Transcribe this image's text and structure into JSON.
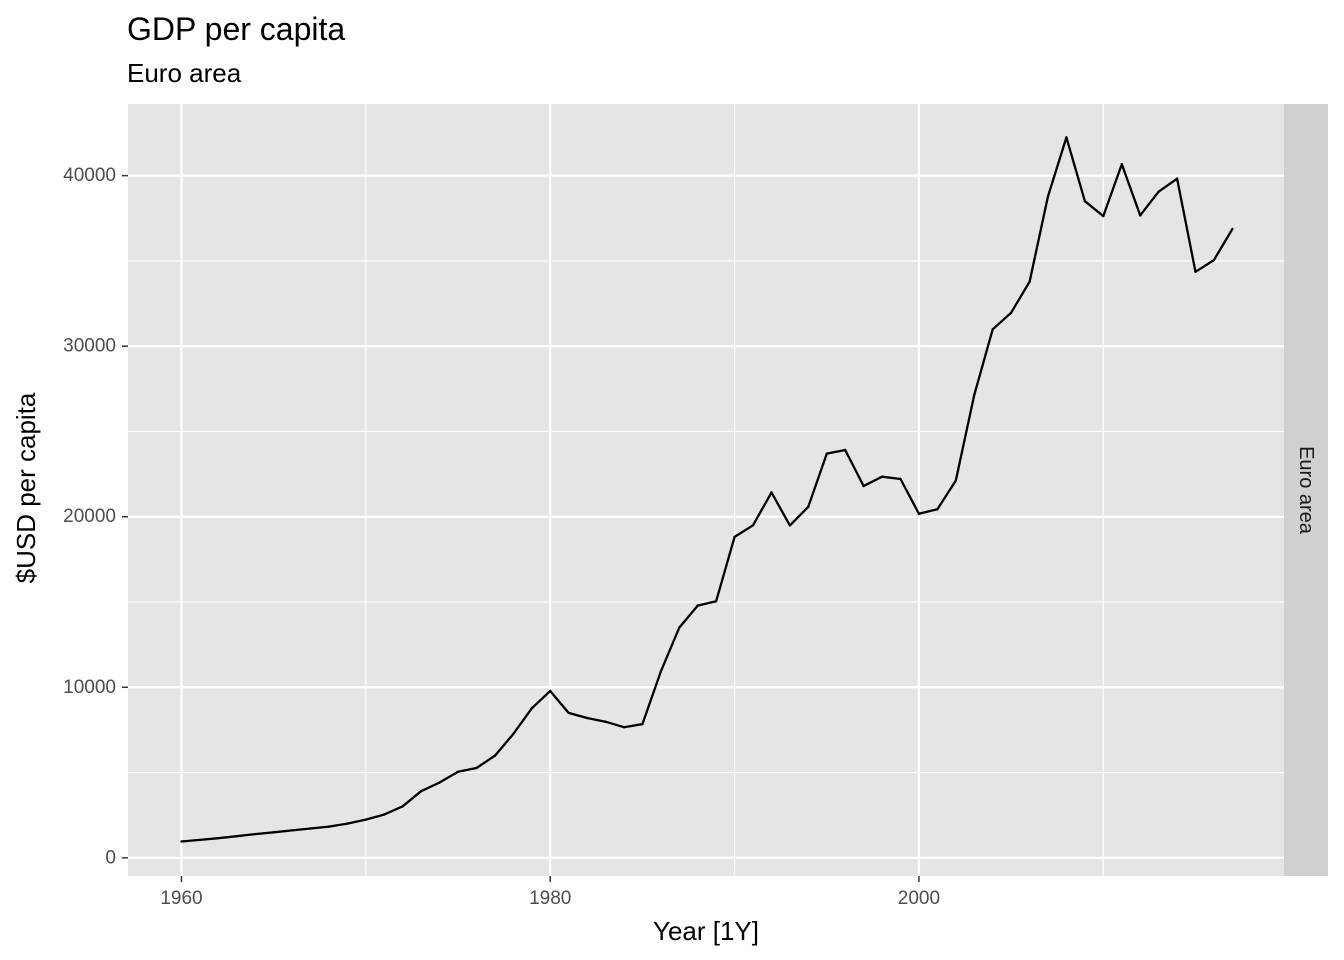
{
  "chart_data": {
    "type": "line",
    "title": "GDP per capita",
    "subtitle": "Euro area",
    "xlabel": "Year [1Y]",
    "ylabel": "$USD per capita",
    "facet_label": "Euro area",
    "xlim": [
      1957.1,
      2019.8
    ],
    "ylim": [
      -1065,
      44200
    ],
    "x_ticks": [
      1960,
      1980,
      2000
    ],
    "x_minor_ticks": [
      1970,
      1990,
      2010
    ],
    "y_ticks": [
      0,
      10000,
      20000,
      30000,
      40000
    ],
    "y_minor_ticks": [
      5000,
      15000,
      25000,
      35000
    ],
    "grid": true,
    "colors": {
      "panel": "#e5e5e5",
      "grid": "#ffffff",
      "strip": "#d0d0d0",
      "line": "#000000"
    },
    "series": [
      {
        "x": [
          1960,
          1961,
          1962,
          1963,
          1964,
          1965,
          1966,
          1967,
          1968,
          1969,
          1970,
          1971,
          1972,
          1973,
          1974,
          1975,
          1976,
          1977,
          1978,
          1979,
          1980,
          1981,
          1982,
          1983,
          1984,
          1985,
          1986,
          1987,
          1988,
          1989,
          1990,
          1991,
          1992,
          1993,
          1994,
          1995,
          1996,
          1997,
          1998,
          1999,
          2000,
          2001,
          2002,
          2003,
          2004,
          2005,
          2006,
          2007,
          2008,
          2009,
          2010,
          2011,
          2012,
          2013,
          2014,
          2015,
          2016,
          2017
        ],
        "values": [
          960,
          1050,
          1150,
          1270,
          1390,
          1500,
          1610,
          1720,
          1830,
          2010,
          2240,
          2540,
          3020,
          3910,
          4420,
          5050,
          5270,
          5990,
          7260,
          8770,
          9780,
          8500,
          8200,
          7980,
          7660,
          7840,
          10920,
          13500,
          14790,
          15040,
          18820,
          19500,
          21420,
          19490,
          20580,
          23700,
          23910,
          21800,
          22350,
          22210,
          20180,
          20440,
          22120,
          27150,
          30990,
          31960,
          33780,
          38790,
          42240,
          38500,
          37630,
          40670,
          37670,
          39060,
          39820,
          34360,
          35050,
          36870
        ]
      }
    ]
  }
}
